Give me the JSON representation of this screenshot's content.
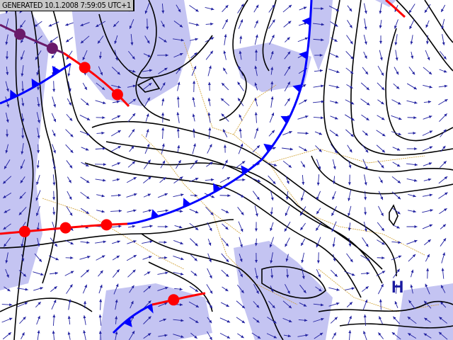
{
  "header": {
    "generated": "GENERATED 10.1.2008 7:59:05 UTC+1"
  },
  "pressure_centers": [
    {
      "label": "H"
    }
  ],
  "colors": {
    "precipitation": "#c4c4f2",
    "isobar": "#000000",
    "cold_front": "#0000ff",
    "warm_front": "#ff0000",
    "occluded_front": "#6a1a6a",
    "wind_arrow": "#2020a0",
    "borders": "#d0a030",
    "high_label": "#1a1aa0"
  }
}
